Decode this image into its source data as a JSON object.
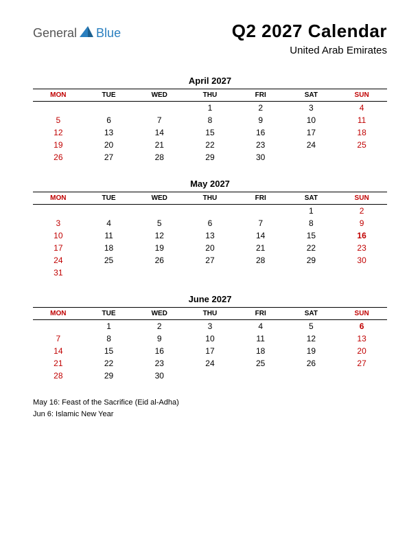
{
  "logo": {
    "main": "General",
    "sub": "Blue"
  },
  "title": "Q2 2027 Calendar",
  "subtitle": "United Arab Emirates",
  "colors": {
    "text": "#000000",
    "weekend": "#c00000",
    "logo_sub": "#2a7fbf",
    "logo_main": "#555555",
    "background": "#ffffff"
  },
  "day_headers": [
    "MON",
    "TUE",
    "WED",
    "THU",
    "FRI",
    "SAT",
    "SUN"
  ],
  "weekend_header_cols": [
    0,
    6
  ],
  "months": [
    {
      "name": "April 2027",
      "weeks": [
        [
          null,
          null,
          null,
          {
            "d": 1
          },
          {
            "d": 2
          },
          {
            "d": 3
          },
          {
            "d": 4,
            "w": true
          }
        ],
        [
          {
            "d": 5,
            "w": true
          },
          {
            "d": 6
          },
          {
            "d": 7
          },
          {
            "d": 8
          },
          {
            "d": 9
          },
          {
            "d": 10
          },
          {
            "d": 11,
            "w": true
          }
        ],
        [
          {
            "d": 12,
            "w": true
          },
          {
            "d": 13
          },
          {
            "d": 14
          },
          {
            "d": 15
          },
          {
            "d": 16
          },
          {
            "d": 17
          },
          {
            "d": 18,
            "w": true
          }
        ],
        [
          {
            "d": 19,
            "w": true
          },
          {
            "d": 20
          },
          {
            "d": 21
          },
          {
            "d": 22
          },
          {
            "d": 23
          },
          {
            "d": 24
          },
          {
            "d": 25,
            "w": true
          }
        ],
        [
          {
            "d": 26,
            "w": true
          },
          {
            "d": 27
          },
          {
            "d": 28
          },
          {
            "d": 29
          },
          {
            "d": 30
          },
          null,
          null
        ]
      ]
    },
    {
      "name": "May 2027",
      "weeks": [
        [
          null,
          null,
          null,
          null,
          null,
          {
            "d": 1
          },
          {
            "d": 2,
            "w": true
          }
        ],
        [
          {
            "d": 3,
            "w": true
          },
          {
            "d": 4
          },
          {
            "d": 5
          },
          {
            "d": 6
          },
          {
            "d": 7
          },
          {
            "d": 8
          },
          {
            "d": 9,
            "w": true
          }
        ],
        [
          {
            "d": 10,
            "w": true
          },
          {
            "d": 11
          },
          {
            "d": 12
          },
          {
            "d": 13
          },
          {
            "d": 14
          },
          {
            "d": 15
          },
          {
            "d": 16,
            "w": true,
            "h": true
          }
        ],
        [
          {
            "d": 17,
            "w": true
          },
          {
            "d": 18
          },
          {
            "d": 19
          },
          {
            "d": 20
          },
          {
            "d": 21
          },
          {
            "d": 22
          },
          {
            "d": 23,
            "w": true
          }
        ],
        [
          {
            "d": 24,
            "w": true
          },
          {
            "d": 25
          },
          {
            "d": 26
          },
          {
            "d": 27
          },
          {
            "d": 28
          },
          {
            "d": 29
          },
          {
            "d": 30,
            "w": true
          }
        ],
        [
          {
            "d": 31,
            "w": true
          },
          null,
          null,
          null,
          null,
          null,
          null
        ]
      ]
    },
    {
      "name": "June 2027",
      "weeks": [
        [
          null,
          {
            "d": 1
          },
          {
            "d": 2
          },
          {
            "d": 3
          },
          {
            "d": 4
          },
          {
            "d": 5
          },
          {
            "d": 6,
            "w": true,
            "h": true
          }
        ],
        [
          {
            "d": 7,
            "w": true
          },
          {
            "d": 8
          },
          {
            "d": 9
          },
          {
            "d": 10
          },
          {
            "d": 11
          },
          {
            "d": 12
          },
          {
            "d": 13,
            "w": true
          }
        ],
        [
          {
            "d": 14,
            "w": true
          },
          {
            "d": 15
          },
          {
            "d": 16
          },
          {
            "d": 17
          },
          {
            "d": 18
          },
          {
            "d": 19
          },
          {
            "d": 20,
            "w": true
          }
        ],
        [
          {
            "d": 21,
            "w": true
          },
          {
            "d": 22
          },
          {
            "d": 23
          },
          {
            "d": 24
          },
          {
            "d": 25
          },
          {
            "d": 26
          },
          {
            "d": 27,
            "w": true
          }
        ],
        [
          {
            "d": 28,
            "w": true
          },
          {
            "d": 29
          },
          {
            "d": 30
          },
          null,
          null,
          null,
          null
        ]
      ]
    }
  ],
  "notes": [
    "May 16: Feast of the Sacrifice (Eid al-Adha)",
    "Jun 6: Islamic New Year"
  ]
}
